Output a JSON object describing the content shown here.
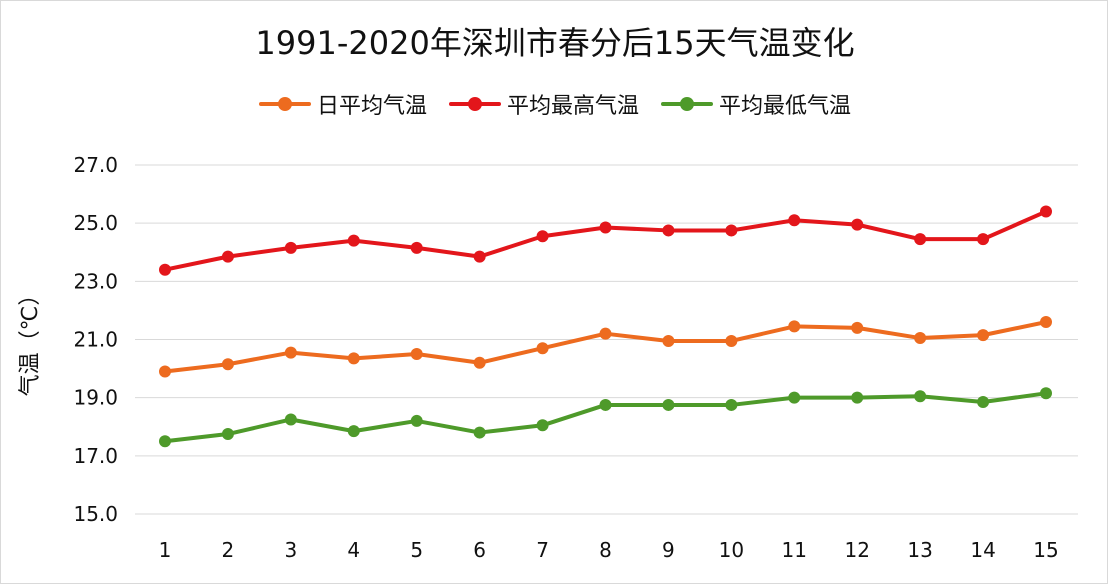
{
  "chart_data": {
    "type": "line",
    "title": "1991-2020年深圳市春分后15天气温变化",
    "xlabel": "",
    "ylabel": "气温（℃）",
    "categories": [
      "1",
      "2",
      "3",
      "4",
      "5",
      "6",
      "7",
      "8",
      "9",
      "10",
      "11",
      "12",
      "13",
      "14",
      "15"
    ],
    "ylim": [
      15.0,
      27.0
    ],
    "yticks": [
      "15.0",
      "17.0",
      "19.0",
      "21.0",
      "23.0",
      "25.0",
      "27.0"
    ],
    "grid": true,
    "legend_position": "top",
    "series": [
      {
        "name": "日平均气温",
        "color": "#ED6B1F",
        "values": [
          19.9,
          20.15,
          20.55,
          20.35,
          20.5,
          20.2,
          20.7,
          21.2,
          20.95,
          20.95,
          21.45,
          21.4,
          21.05,
          21.15,
          21.6
        ]
      },
      {
        "name": "平均最高气温",
        "color": "#E3161B",
        "values": [
          23.4,
          23.85,
          24.15,
          24.4,
          24.15,
          23.85,
          24.55,
          24.85,
          24.75,
          24.75,
          25.1,
          24.95,
          24.45,
          24.45,
          25.4
        ]
      },
      {
        "name": "平均最低气温",
        "color": "#4E9A2A",
        "values": [
          17.5,
          17.75,
          18.25,
          17.85,
          18.2,
          17.8,
          18.05,
          18.75,
          18.75,
          18.75,
          19.0,
          19.0,
          19.05,
          18.85,
          19.15
        ]
      }
    ]
  }
}
